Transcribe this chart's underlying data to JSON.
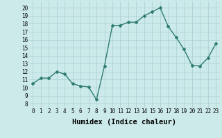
{
  "x": [
    0,
    1,
    2,
    3,
    4,
    5,
    6,
    7,
    8,
    9,
    10,
    11,
    12,
    13,
    14,
    15,
    16,
    17,
    18,
    19,
    20,
    21,
    22,
    23
  ],
  "y": [
    10.5,
    11.2,
    11.2,
    12.0,
    11.7,
    10.5,
    10.2,
    10.1,
    8.5,
    12.7,
    17.8,
    17.8,
    18.2,
    18.2,
    19.0,
    19.5,
    20.0,
    17.7,
    16.3,
    14.8,
    12.8,
    12.7,
    13.7,
    15.5
  ],
  "line_color": "#2e7d6e",
  "marker": "D",
  "marker_size": 2,
  "bg_color": "#cceaea",
  "grid_color": "#aacece",
  "xlabel": "Humidex (Indice chaleur)",
  "xlabel_fontsize": 7.5,
  "xlim": [
    -0.5,
    23.5
  ],
  "ylim": [
    7.5,
    20.8
  ],
  "yticks": [
    8,
    9,
    10,
    11,
    12,
    13,
    14,
    15,
    16,
    17,
    18,
    19,
    20
  ],
  "xticks": [
    0,
    1,
    2,
    3,
    4,
    5,
    6,
    7,
    8,
    9,
    10,
    11,
    12,
    13,
    14,
    15,
    16,
    17,
    18,
    19,
    20,
    21,
    22,
    23
  ],
  "tick_fontsize": 5.5,
  "linewidth": 1.0
}
